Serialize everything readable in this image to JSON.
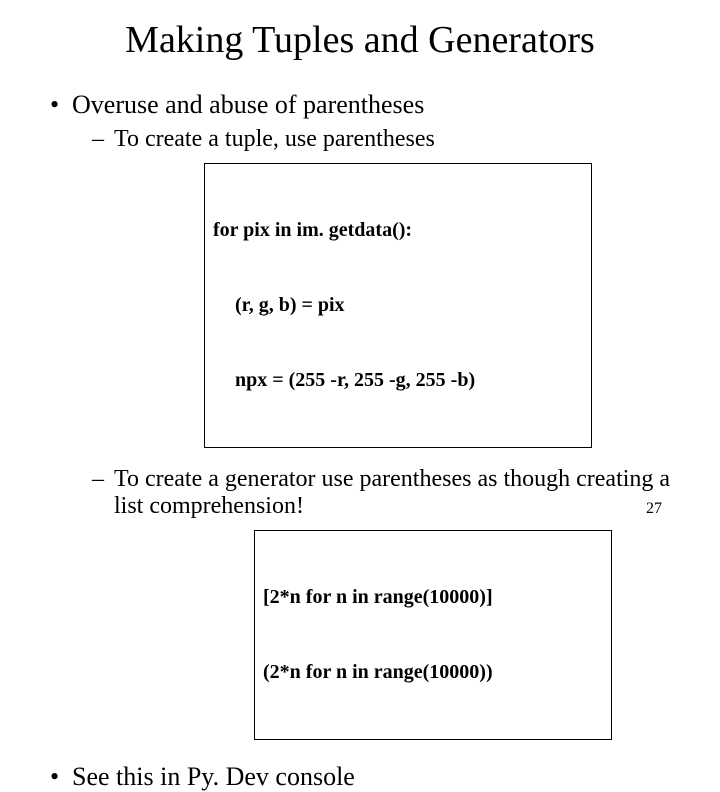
{
  "title": "Making Tuples and Generators",
  "bullets": {
    "b1": "Overuse and abuse of parentheses",
    "b1_1": "To create a tuple, use parentheses",
    "b1_2": "To create a generator use parentheses as though creating a list comprehension!",
    "b2": "See this in Py. Dev console"
  },
  "code1": {
    "l1": "for pix in im. getdata():",
    "l2": "(r, g, b) = pix",
    "l3": "npx = (255 -r, 255 -g, 255 -b)"
  },
  "code2": {
    "l1": "[2*n for n in range(10000)]",
    "l2": "(2*n for n in range(10000))"
  },
  "page_number": "27",
  "style": {
    "background_color": "#ffffff",
    "text_color": "#000000",
    "border_color": "#000000",
    "title_fontsize": 38,
    "bullet1_fontsize": 26,
    "bullet2_fontsize": 24,
    "code_fontsize": 20,
    "page_num_fontsize": 16,
    "font_family": "Times New Roman"
  }
}
